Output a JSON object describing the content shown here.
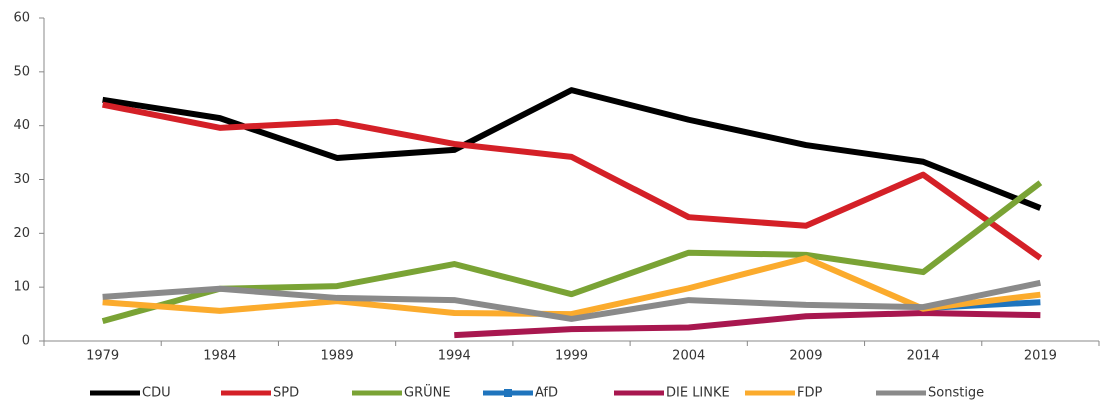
{
  "chart_data": {
    "type": "line",
    "categories": [
      "1979",
      "1984",
      "1989",
      "1994",
      "1999",
      "2004",
      "2009",
      "2014",
      "2019"
    ],
    "series": [
      {
        "name": "CDU",
        "color": "#000000",
        "values": [
          44.8,
          41.4,
          34.0,
          35.5,
          46.6,
          41.1,
          36.4,
          33.3,
          24.7
        ]
      },
      {
        "name": "SPD",
        "color": "#d42027",
        "values": [
          43.9,
          39.6,
          40.7,
          36.6,
          34.2,
          23.0,
          21.4,
          30.9,
          15.4
        ]
      },
      {
        "name": "GRÜNE",
        "color": "#7aa335",
        "values": [
          3.7,
          9.7,
          10.2,
          14.3,
          8.7,
          16.4,
          16.0,
          12.8,
          29.4
        ]
      },
      {
        "name": "AfD",
        "color": "#1f74bd",
        "values": [
          null,
          null,
          null,
          null,
          null,
          null,
          null,
          6.1,
          7.2
        ]
      },
      {
        "name": "DIE LINKE",
        "color": "#a8174f",
        "values": [
          null,
          null,
          null,
          1.1,
          2.2,
          2.5,
          4.6,
          5.2,
          4.8
        ]
      },
      {
        "name": "FDP",
        "color": "#fbab2d",
        "values": [
          7.2,
          5.6,
          7.4,
          5.2,
          5.0,
          9.8,
          15.4,
          6.0,
          8.6
        ]
      },
      {
        "name": "Sonstige",
        "color": "#8a8a8a",
        "values": [
          8.2,
          9.7,
          8.0,
          7.6,
          4.1,
          7.6,
          6.7,
          6.3,
          10.8
        ]
      }
    ],
    "ylim": [
      0,
      60
    ],
    "yticks": [
      0,
      10,
      20,
      30,
      40,
      50,
      60
    ],
    "grid": false,
    "legend": "bottom"
  }
}
